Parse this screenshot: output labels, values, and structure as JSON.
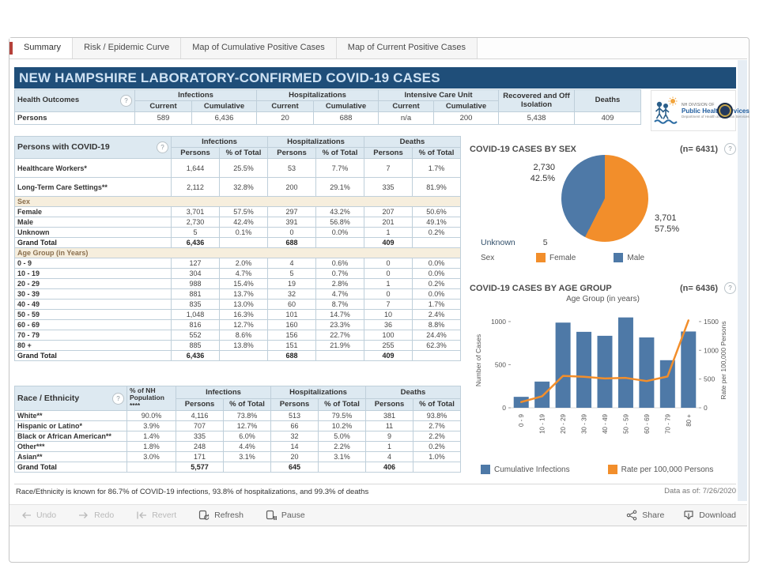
{
  "tabs": [
    {
      "label": "Summary",
      "active": true
    },
    {
      "label": "Risk / Epidemic Curve",
      "active": false
    },
    {
      "label": "Map of Cumulative Positive Cases",
      "active": false
    },
    {
      "label": "Map of Current Positive Cases",
      "active": false
    }
  ],
  "title": "NEW HAMPSHIRE LABORATORY-CONFIRMED COVID-19 CASES",
  "colors": {
    "blue": "#4e79a7",
    "orange": "#f28e2b",
    "title_bar": "#1f4e79",
    "header_bg": "#dde9f1",
    "section_bg": "#f6eedd"
  },
  "health_outcomes": {
    "name": "health-outcomes-table",
    "title": "Health Outcomes",
    "col_groups": [
      {
        "label": "Infections",
        "span": 2
      },
      {
        "label": "Hospitalizations",
        "span": 2
      },
      {
        "label": "Intensive Care Unit",
        "span": 2
      },
      {
        "label": "Recovered and Off Isolation",
        "rowspan": true
      },
      {
        "label": "Deaths",
        "rowspan": true
      }
    ],
    "sub_headers": [
      "Current",
      "Cumulative",
      "Current",
      "Cumulative",
      "Current",
      "Cumulative"
    ],
    "rows": [
      {
        "label": "Persons",
        "cells": [
          "589",
          "6,436",
          "20",
          "688",
          "n/a",
          "200",
          "5,438",
          "409"
        ]
      }
    ]
  },
  "logo": {
    "line1": "NH DIVISION OF",
    "line2": "Public Health Services",
    "line3": "Department of Health and Human Services"
  },
  "persons": {
    "name": "persons-with-covid-table",
    "title": "Persons with COVID-19",
    "col_groups": [
      {
        "label": "Infections",
        "span": 2
      },
      {
        "label": "Hospitalizations",
        "span": 2
      },
      {
        "label": "Deaths",
        "span": 2
      }
    ],
    "sub_headers": [
      "Persons",
      "% of Total",
      "Persons",
      "% of Total",
      "Persons",
      "% of Total"
    ],
    "rows": [
      {
        "label": "Healthcare Workers*",
        "cells": [
          "1,644",
          "25.5%",
          "53",
          "7.7%",
          "7",
          "1.7%"
        ],
        "style": "tall"
      },
      {
        "label": "Long-Term Care Settings**",
        "cells": [
          "2,112",
          "32.8%",
          "200",
          "29.1%",
          "335",
          "81.9%"
        ],
        "style": "tall"
      },
      {
        "label": "Sex",
        "style": "section"
      },
      {
        "label": "Female",
        "cells": [
          "3,701",
          "57.5%",
          "297",
          "43.2%",
          "207",
          "50.6%"
        ]
      },
      {
        "label": "Male",
        "cells": [
          "2,730",
          "42.4%",
          "391",
          "56.8%",
          "201",
          "49.1%"
        ]
      },
      {
        "label": "Unknown",
        "cells": [
          "5",
          "0.1%",
          "0",
          "0.0%",
          "1",
          "0.2%"
        ]
      },
      {
        "label": "Grand Total",
        "cells": [
          "6,436",
          "",
          "688",
          "",
          "409",
          ""
        ],
        "style": "total"
      },
      {
        "label": "Age Group (in Years)",
        "style": "section"
      },
      {
        "label": "0 - 9",
        "cells": [
          "127",
          "2.0%",
          "4",
          "0.6%",
          "0",
          "0.0%"
        ]
      },
      {
        "label": "10 - 19",
        "cells": [
          "304",
          "4.7%",
          "5",
          "0.7%",
          "0",
          "0.0%"
        ]
      },
      {
        "label": "20 - 29",
        "cells": [
          "988",
          "15.4%",
          "19",
          "2.8%",
          "1",
          "0.2%"
        ]
      },
      {
        "label": "30 - 39",
        "cells": [
          "881",
          "13.7%",
          "32",
          "4.7%",
          "0",
          "0.0%"
        ]
      },
      {
        "label": "40 - 49",
        "cells": [
          "835",
          "13.0%",
          "60",
          "8.7%",
          "7",
          "1.7%"
        ]
      },
      {
        "label": "50 - 59",
        "cells": [
          "1,048",
          "16.3%",
          "101",
          "14.7%",
          "10",
          "2.4%"
        ]
      },
      {
        "label": "60 - 69",
        "cells": [
          "816",
          "12.7%",
          "160",
          "23.3%",
          "36",
          "8.8%"
        ]
      },
      {
        "label": "70 - 79",
        "cells": [
          "552",
          "8.6%",
          "156",
          "22.7%",
          "100",
          "24.4%"
        ]
      },
      {
        "label": "80 +",
        "cells": [
          "885",
          "13.8%",
          "151",
          "21.9%",
          "255",
          "62.3%"
        ]
      },
      {
        "label": "Grand Total",
        "cells": [
          "6,436",
          "",
          "688",
          "",
          "409",
          ""
        ],
        "style": "total"
      }
    ]
  },
  "race": {
    "name": "race-ethnicity-table",
    "title": "Race / Ethnicity",
    "pop_header": "% of NH Population ****",
    "col_groups": [
      {
        "label": "Infections",
        "span": 2
      },
      {
        "label": "Hospitalizations",
        "span": 2
      },
      {
        "label": "Deaths",
        "span": 2
      }
    ],
    "sub_headers": [
      "Persons",
      "% of Total",
      "Persons",
      "% of Total",
      "Persons",
      "% of Total"
    ],
    "rows": [
      {
        "label": "White**",
        "pop": "90.0%",
        "cells": [
          "4,116",
          "73.8%",
          "513",
          "79.5%",
          "381",
          "93.8%"
        ]
      },
      {
        "label": "Hispanic or Latino*",
        "pop": "3.9%",
        "cells": [
          "707",
          "12.7%",
          "66",
          "10.2%",
          "11",
          "2.7%"
        ]
      },
      {
        "label": "Black or African American**",
        "pop": "1.4%",
        "cells": [
          "335",
          "6.0%",
          "32",
          "5.0%",
          "9",
          "2.2%"
        ]
      },
      {
        "label": "Other***",
        "pop": "1.8%",
        "cells": [
          "248",
          "4.4%",
          "14",
          "2.2%",
          "1",
          "0.2%"
        ]
      },
      {
        "label": "Asian**",
        "pop": "3.0%",
        "cells": [
          "171",
          "3.1%",
          "20",
          "3.1%",
          "4",
          "1.0%"
        ]
      },
      {
        "label": "Grand Total",
        "pop": "",
        "cells": [
          "5,577",
          "",
          "645",
          "",
          "406",
          ""
        ],
        "style": "total"
      }
    ]
  },
  "footnote": "Race/Ethnicity is known for 86.7% of COVID-19 infections, 93.8% of hospitalizations, and 99.3% of deaths",
  "data_as_of": "Data as of:  7/26/2020",
  "toolbar": {
    "left": [
      {
        "id": "undo",
        "label": "Undo",
        "disabled": true
      },
      {
        "id": "redo",
        "label": "Redo",
        "disabled": true
      },
      {
        "id": "revert",
        "label": "Revert",
        "disabled": true
      },
      {
        "id": "refresh",
        "label": "Refresh",
        "disabled": false
      },
      {
        "id": "pause",
        "label": "Pause",
        "disabled": false
      }
    ],
    "right": [
      {
        "id": "share",
        "label": "Share",
        "disabled": false
      },
      {
        "id": "download",
        "label": "Download",
        "disabled": false
      }
    ]
  },
  "chart_data": [
    {
      "type": "pie",
      "title": "COVID-19 CASES BY SEX",
      "n_label": "(n= 6431)",
      "slices": [
        {
          "label": "Female",
          "value": 3701,
          "pct": 57.5,
          "color": "#f28e2b",
          "annotation": [
            "3,701",
            "57.5%"
          ],
          "annotation_pos": "right"
        },
        {
          "label": "Male",
          "value": 2730,
          "pct": 42.5,
          "color": "#4e79a7",
          "annotation": [
            "2,730",
            "42.5%"
          ],
          "annotation_pos": "left"
        }
      ],
      "unknown": {
        "label": "Unknown",
        "value": "5"
      },
      "legend_title": "Sex",
      "legend_position": "bottom"
    },
    {
      "type": "bar",
      "title": "COVID-19 CASES BY AGE GROUP",
      "n_label": "(n= 6436)",
      "subtitle": "Age Group (in years)",
      "categories": [
        "0 - 9",
        "10 - 19",
        "20 - 29",
        "30 - 39",
        "40 - 49",
        "50 - 59",
        "60 - 69",
        "70 - 79",
        "80 +"
      ],
      "series": [
        {
          "name": "Cumulative Infections",
          "kind": "bar",
          "axis": "left",
          "color": "#4e79a7",
          "values": [
            127,
            304,
            988,
            881,
            835,
            1048,
            816,
            552,
            885
          ]
        },
        {
          "name": "Rate per 100,000 Persons",
          "kind": "line",
          "axis": "right",
          "color": "#f28e2b",
          "values": [
            100,
            200,
            555,
            540,
            510,
            520,
            465,
            545,
            1520
          ]
        }
      ],
      "left_axis": {
        "label": "Number of Cases",
        "ticks": [
          0,
          500,
          1000
        ],
        "max": 1100
      },
      "right_axis": {
        "label": "Rate per 100,000 Persons",
        "ticks": [
          0,
          500,
          1000,
          1500
        ],
        "max": 1650
      },
      "grid": false,
      "legend_position": "bottom"
    }
  ]
}
